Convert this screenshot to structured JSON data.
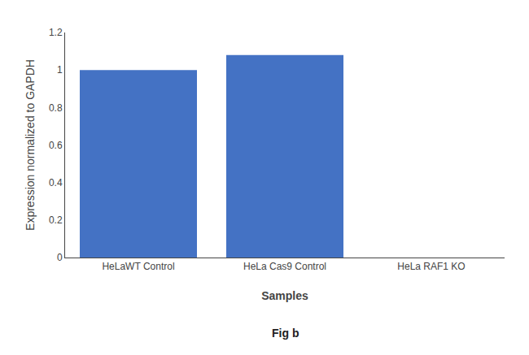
{
  "chart_data": {
    "type": "bar",
    "categories": [
      "HeLaWT Control",
      "HeLa Cas9 Control",
      "HeLa RAF1 KO"
    ],
    "values": [
      1.0,
      1.08,
      0.0
    ],
    "color": "#4472C4",
    "xlabel": "Samples",
    "ylabel": "Expression normalized to GAPDH",
    "ylim": [
      0,
      1.2
    ],
    "yticks": [
      0,
      0.2,
      0.4,
      0.6,
      0.8,
      1.0,
      1.2
    ],
    "grid": false,
    "annotations": [
      {
        "text": "Fig b"
      }
    ]
  }
}
